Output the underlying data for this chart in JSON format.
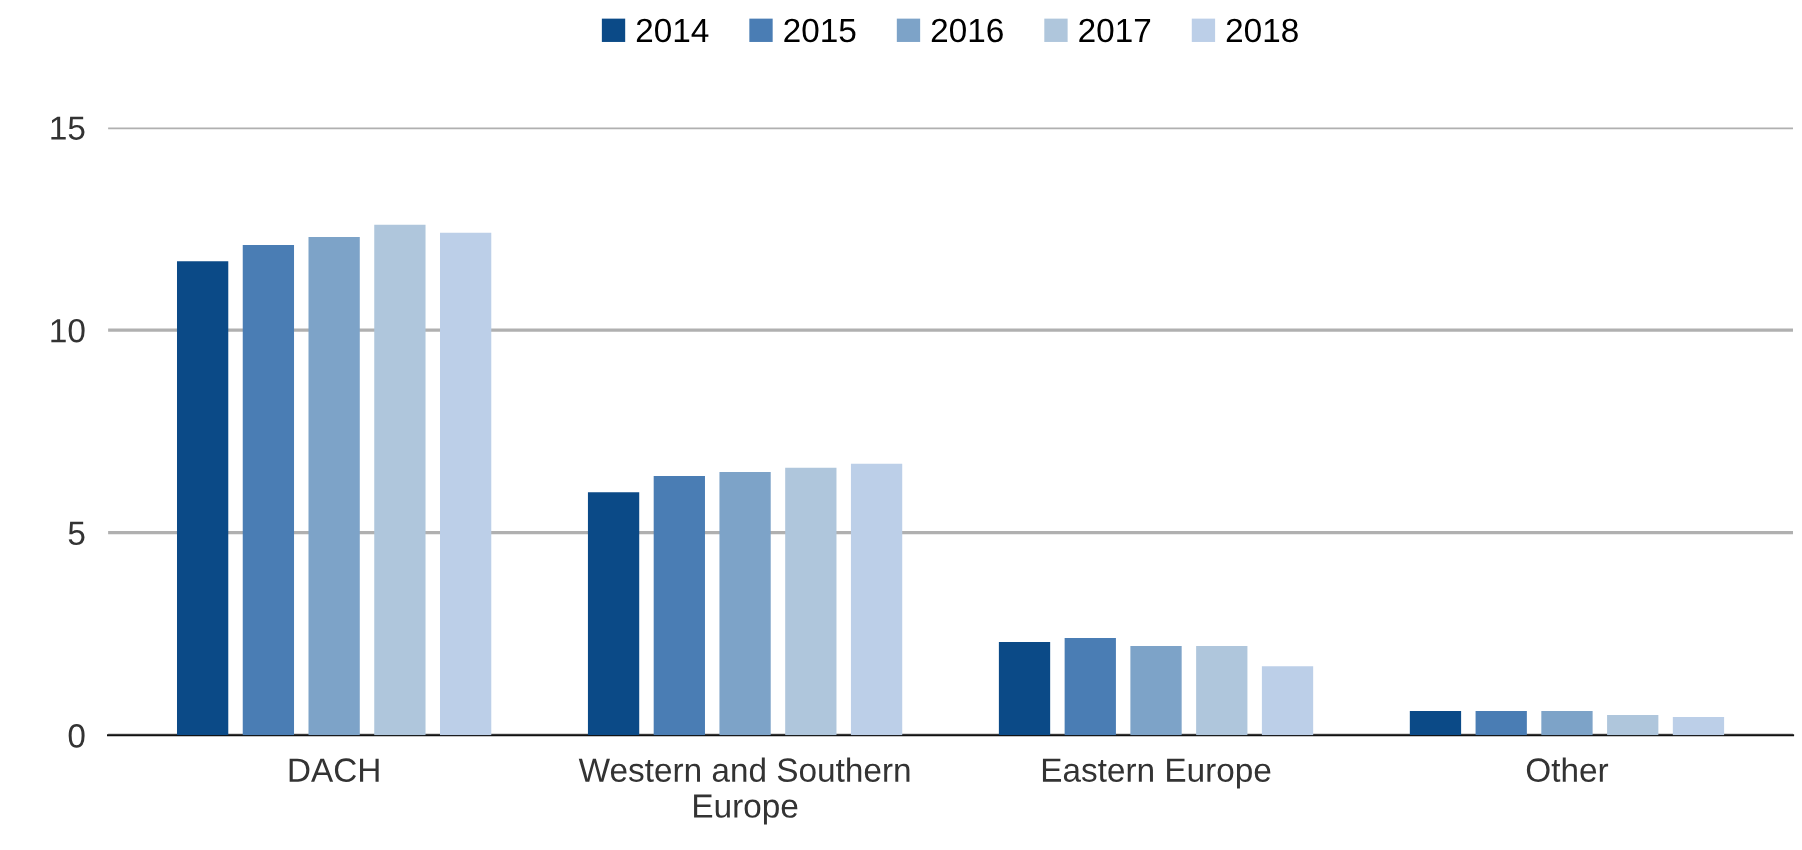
{
  "chart_data": {
    "type": "bar",
    "categories": [
      "DACH",
      "Western and Southern\nEurope",
      "Eastern Europe",
      "Other"
    ],
    "series": [
      {
        "name": "2014",
        "color": "#0b4a87",
        "values": [
          11.7,
          6.0,
          2.3,
          0.6
        ]
      },
      {
        "name": "2015",
        "color": "#4a7db4",
        "values": [
          12.1,
          6.4,
          2.4,
          0.6
        ]
      },
      {
        "name": "2016",
        "color": "#7da3c8",
        "values": [
          12.3,
          6.5,
          2.2,
          0.6
        ]
      },
      {
        "name": "2017",
        "color": "#afc6dc",
        "values": [
          12.6,
          6.6,
          2.2,
          0.5
        ]
      },
      {
        "name": "2018",
        "color": "#bccfe8",
        "values": [
          12.4,
          6.7,
          1.7,
          0.45
        ]
      }
    ],
    "ylim": [
      0,
      15
    ],
    "yticks": [
      0,
      5,
      10,
      15
    ],
    "grid": "y",
    "legend": "top"
  }
}
